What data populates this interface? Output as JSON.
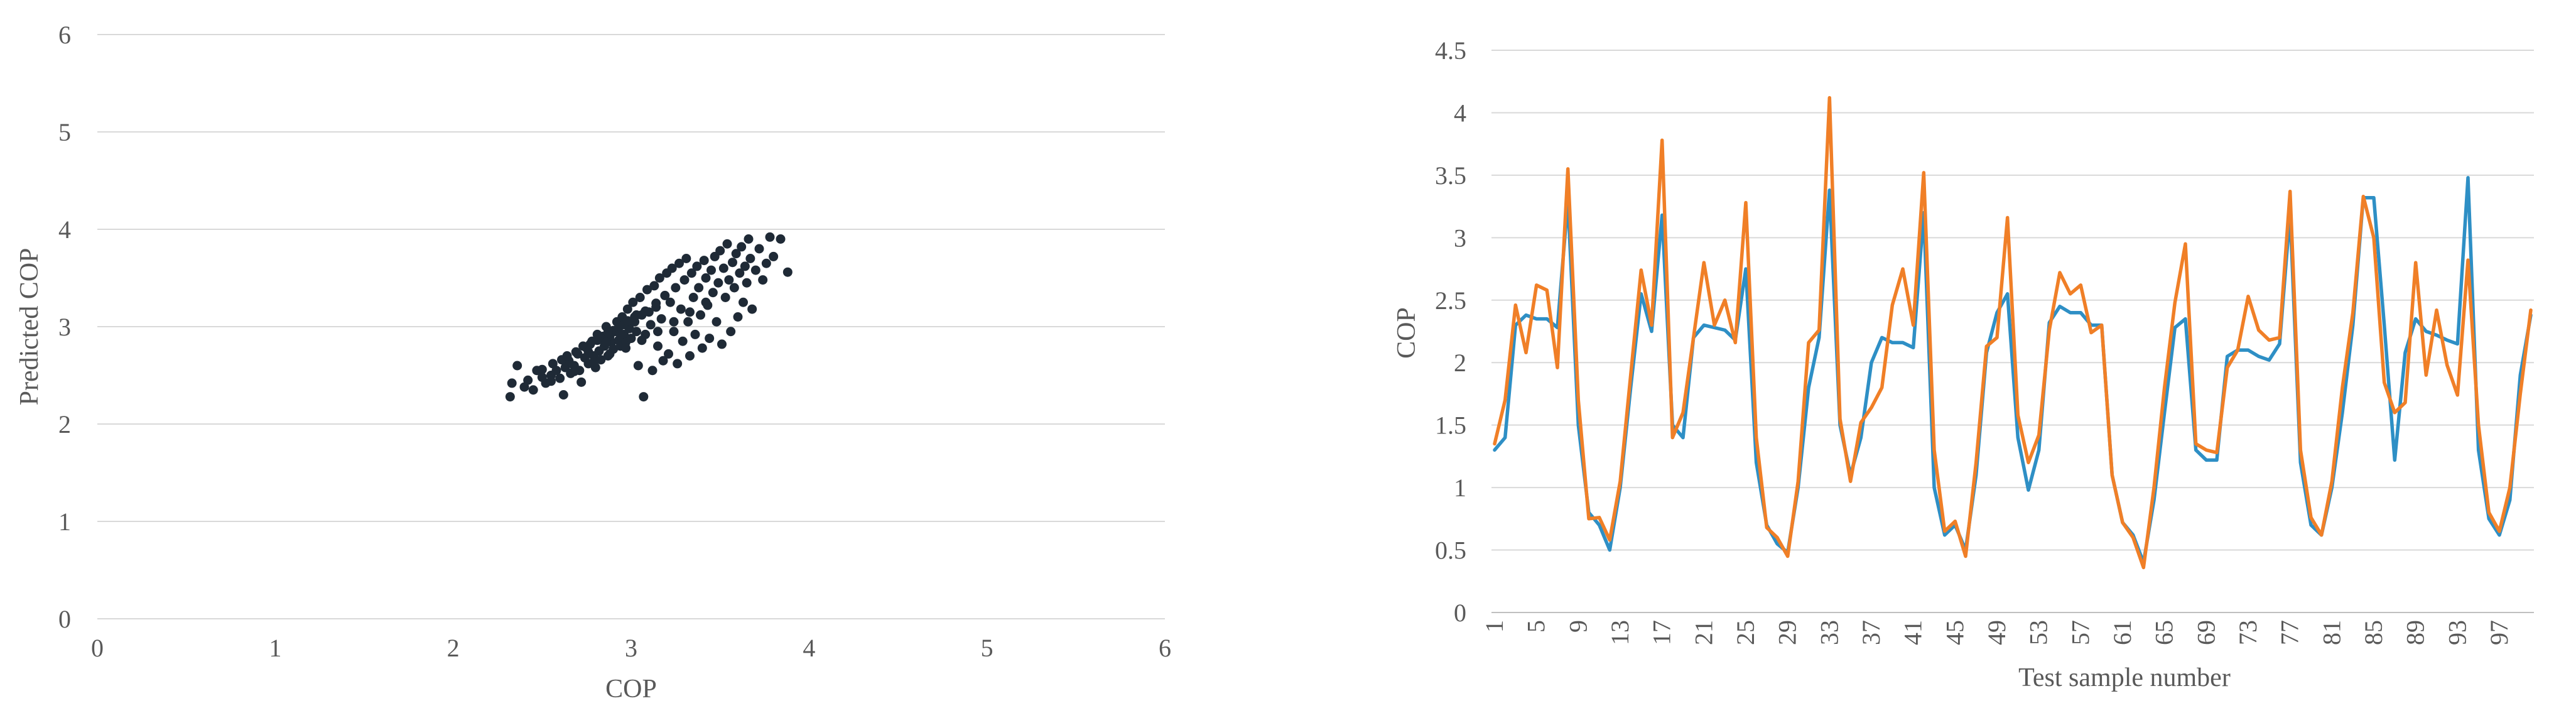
{
  "chart_data": [
    {
      "type": "scatter",
      "title": "",
      "xlabel": "COP",
      "ylabel": "Predicted COP",
      "xlim": [
        0,
        6
      ],
      "ylim": [
        0,
        6
      ],
      "xticks": [
        "0",
        "1",
        "2",
        "3",
        "4",
        "5",
        "6"
      ],
      "yticks": [
        "0",
        "1",
        "2",
        "3",
        "4",
        "5",
        "6"
      ],
      "grid": "horizontal",
      "marker_color": "#1f2a36",
      "points": [
        [
          2.32,
          2.28
        ],
        [
          2.33,
          2.42
        ],
        [
          2.36,
          2.6
        ],
        [
          2.4,
          2.38
        ],
        [
          2.42,
          2.45
        ],
        [
          2.45,
          2.35
        ],
        [
          2.47,
          2.55
        ],
        [
          2.5,
          2.48
        ],
        [
          2.52,
          2.42
        ],
        [
          2.55,
          2.5
        ],
        [
          2.56,
          2.62
        ],
        [
          2.58,
          2.55
        ],
        [
          2.6,
          2.47
        ],
        [
          2.62,
          2.3
        ],
        [
          2.63,
          2.58
        ],
        [
          2.65,
          2.65
        ],
        [
          2.66,
          2.52
        ],
        [
          2.68,
          2.6
        ],
        [
          2.7,
          2.72
        ],
        [
          2.71,
          2.55
        ],
        [
          2.72,
          2.43
        ],
        [
          2.74,
          2.68
        ],
        [
          2.75,
          2.78
        ],
        [
          2.76,
          2.62
        ],
        [
          2.78,
          2.85
        ],
        [
          2.79,
          2.7
        ],
        [
          2.8,
          2.58
        ],
        [
          2.81,
          2.92
        ],
        [
          2.82,
          2.75
        ],
        [
          2.83,
          2.66
        ],
        [
          2.84,
          2.88
        ],
        [
          2.85,
          2.8
        ],
        [
          2.86,
          3.0
        ],
        [
          2.87,
          2.7
        ],
        [
          2.88,
          2.9
        ],
        [
          2.89,
          2.84
        ],
        [
          2.9,
          2.77
        ],
        [
          2.91,
          2.95
        ],
        [
          2.92,
          3.05
        ],
        [
          2.93,
          2.86
        ],
        [
          2.94,
          2.8
        ],
        [
          2.95,
          3.1
        ],
        [
          2.96,
          2.92
        ],
        [
          2.97,
          2.84
        ],
        [
          2.98,
          3.18
        ],
        [
          2.99,
          2.98
        ],
        [
          3.0,
          2.88
        ],
        [
          3.01,
          3.25
        ],
        [
          3.02,
          3.05
        ],
        [
          3.03,
          2.95
        ],
        [
          3.04,
          2.6
        ],
        [
          3.05,
          3.3
        ],
        [
          3.06,
          3.12
        ],
        [
          3.07,
          2.28
        ],
        [
          3.08,
          2.92
        ],
        [
          3.09,
          3.38
        ],
        [
          3.1,
          3.15
        ],
        [
          3.11,
          3.02
        ],
        [
          3.12,
          2.55
        ],
        [
          3.13,
          3.42
        ],
        [
          3.14,
          3.2
        ],
        [
          3.15,
          2.8
        ],
        [
          3.16,
          3.5
        ],
        [
          3.17,
          3.08
        ],
        [
          3.18,
          2.65
        ],
        [
          3.19,
          3.32
        ],
        [
          3.2,
          3.55
        ],
        [
          3.21,
          2.72
        ],
        [
          3.22,
          3.25
        ],
        [
          3.23,
          3.6
        ],
        [
          3.24,
          2.95
        ],
        [
          3.25,
          3.4
        ],
        [
          3.26,
          2.62
        ],
        [
          3.27,
          3.65
        ],
        [
          3.28,
          3.18
        ],
        [
          3.29,
          2.85
        ],
        [
          3.3,
          3.48
        ],
        [
          3.31,
          3.7
        ],
        [
          3.32,
          3.05
        ],
        [
          3.33,
          2.7
        ],
        [
          3.34,
          3.55
        ],
        [
          3.35,
          3.3
        ],
        [
          3.36,
          2.92
        ],
        [
          3.37,
          3.62
        ],
        [
          3.38,
          3.4
        ],
        [
          3.39,
          3.12
        ],
        [
          3.4,
          2.78
        ],
        [
          3.41,
          3.68
        ],
        [
          3.42,
          3.5
        ],
        [
          3.43,
          3.22
        ],
        [
          3.44,
          2.88
        ],
        [
          3.45,
          3.58
        ],
        [
          3.46,
          3.35
        ],
        [
          3.47,
          3.72
        ],
        [
          3.48,
          3.05
        ],
        [
          3.49,
          3.45
        ],
        [
          3.5,
          3.78
        ],
        [
          3.51,
          2.82
        ],
        [
          3.52,
          3.6
        ],
        [
          3.53,
          3.3
        ],
        [
          3.54,
          3.85
        ],
        [
          3.55,
          3.48
        ],
        [
          3.56,
          2.95
        ],
        [
          3.57,
          3.66
        ],
        [
          3.58,
          3.4
        ],
        [
          3.59,
          3.75
        ],
        [
          3.6,
          3.1
        ],
        [
          3.61,
          3.55
        ],
        [
          3.62,
          3.82
        ],
        [
          3.63,
          3.25
        ],
        [
          3.64,
          3.62
        ],
        [
          3.65,
          3.45
        ],
        [
          3.66,
          3.9
        ],
        [
          3.67,
          3.7
        ],
        [
          3.68,
          3.18
        ],
        [
          3.7,
          3.58
        ],
        [
          3.72,
          3.8
        ],
        [
          3.74,
          3.48
        ],
        [
          3.76,
          3.65
        ],
        [
          3.78,
          3.92
        ],
        [
          3.8,
          3.72
        ],
        [
          3.84,
          3.9
        ],
        [
          3.88,
          3.56
        ],
        [
          2.5,
          2.56
        ],
        [
          2.61,
          2.66
        ],
        [
          2.69,
          2.74
        ],
        [
          2.77,
          2.82
        ],
        [
          2.84,
          2.9
        ],
        [
          2.9,
          2.96
        ],
        [
          2.96,
          3.02
        ],
        [
          3.02,
          3.1
        ],
        [
          3.08,
          3.16
        ],
        [
          3.14,
          3.24
        ],
        [
          2.73,
          2.8
        ],
        [
          2.81,
          2.86
        ],
        [
          2.87,
          2.94
        ],
        [
          2.93,
          2.99
        ],
        [
          2.98,
          3.06
        ],
        [
          3.03,
          3.12
        ],
        [
          2.64,
          2.7
        ],
        [
          2.76,
          2.74
        ],
        [
          2.86,
          2.84
        ],
        [
          2.94,
          2.92
        ],
        [
          2.55,
          2.44
        ],
        [
          2.68,
          2.54
        ],
        [
          2.79,
          2.64
        ],
        [
          2.88,
          2.72
        ],
        [
          2.97,
          2.78
        ],
        [
          3.06,
          2.86
        ],
        [
          3.15,
          2.95
        ],
        [
          3.24,
          3.05
        ],
        [
          3.33,
          3.15
        ],
        [
          3.42,
          3.25
        ]
      ]
    },
    {
      "type": "line",
      "title": "",
      "xlabel": "Test sample number",
      "ylabel": "COP",
      "ylim": [
        0,
        4.5
      ],
      "yticks": [
        "0",
        "0.5",
        "1",
        "1.5",
        "2",
        "2.5",
        "3",
        "3.5",
        "4",
        "4.5"
      ],
      "xtick_labels": [
        "1",
        "5",
        "9",
        "13",
        "17",
        "21",
        "25",
        "29",
        "33",
        "37",
        "41",
        "45",
        "49",
        "53",
        "57",
        "61",
        "65",
        "69",
        "73",
        "77",
        "81",
        "85",
        "89",
        "93",
        "97"
      ],
      "grid": "horizontal",
      "x_start": 1,
      "series": [
        {
          "color": "#2e8fc5",
          "values": [
            1.3,
            1.4,
            2.3,
            2.38,
            2.35,
            2.35,
            2.28,
            3.3,
            1.5,
            0.8,
            0.7,
            0.5,
            1.0,
            1.8,
            2.55,
            2.25,
            3.18,
            1.5,
            1.4,
            2.2,
            2.3,
            2.28,
            2.26,
            2.18,
            2.75,
            1.2,
            0.7,
            0.55,
            0.48,
            1.0,
            1.8,
            2.2,
            3.38,
            1.5,
            1.1,
            1.4,
            2.0,
            2.2,
            2.16,
            2.16,
            2.12,
            3.2,
            1.0,
            0.62,
            0.7,
            0.5,
            1.1,
            2.08,
            2.4,
            2.55,
            1.4,
            0.98,
            1.3,
            2.32,
            2.45,
            2.4,
            2.4,
            2.3,
            2.3,
            1.1,
            0.72,
            0.62,
            0.4,
            0.9,
            1.6,
            2.28,
            2.35,
            1.3,
            1.22,
            1.22,
            2.05,
            2.1,
            2.1,
            2.05,
            2.02,
            2.15,
            3.2,
            1.2,
            0.7,
            0.62,
            1.0,
            1.6,
            2.3,
            3.32,
            3.32,
            2.3,
            1.22,
            2.08,
            2.35,
            2.25,
            2.22,
            2.18,
            2.15,
            3.48,
            1.3,
            0.75,
            0.62,
            0.9,
            1.9,
            2.38
          ]
        },
        {
          "color": "#f07f27",
          "values": [
            1.35,
            1.7,
            2.46,
            2.08,
            2.62,
            2.58,
            1.96,
            3.55,
            1.7,
            0.75,
            0.76,
            0.58,
            1.05,
            1.9,
            2.74,
            2.3,
            3.78,
            1.4,
            1.6,
            2.2,
            2.8,
            2.3,
            2.5,
            2.16,
            3.28,
            1.4,
            0.68,
            0.6,
            0.45,
            1.05,
            2.16,
            2.26,
            4.12,
            1.55,
            1.05,
            1.52,
            1.64,
            1.8,
            2.46,
            2.75,
            2.3,
            3.52,
            1.3,
            0.65,
            0.73,
            0.45,
            1.2,
            2.13,
            2.2,
            3.16,
            1.58,
            1.2,
            1.42,
            2.26,
            2.72,
            2.55,
            2.62,
            2.24,
            2.3,
            1.1,
            0.72,
            0.6,
            0.36,
            1.0,
            1.8,
            2.48,
            2.95,
            1.35,
            1.3,
            1.28,
            1.96,
            2.1,
            2.53,
            2.26,
            2.18,
            2.2,
            3.37,
            1.3,
            0.76,
            0.62,
            1.05,
            1.8,
            2.4,
            3.33,
            3.0,
            1.84,
            1.6,
            1.68,
            2.8,
            1.9,
            2.42,
            1.98,
            1.74,
            2.82,
            1.5,
            0.8,
            0.65,
            1.0,
            1.75,
            2.42
          ]
        }
      ]
    }
  ]
}
